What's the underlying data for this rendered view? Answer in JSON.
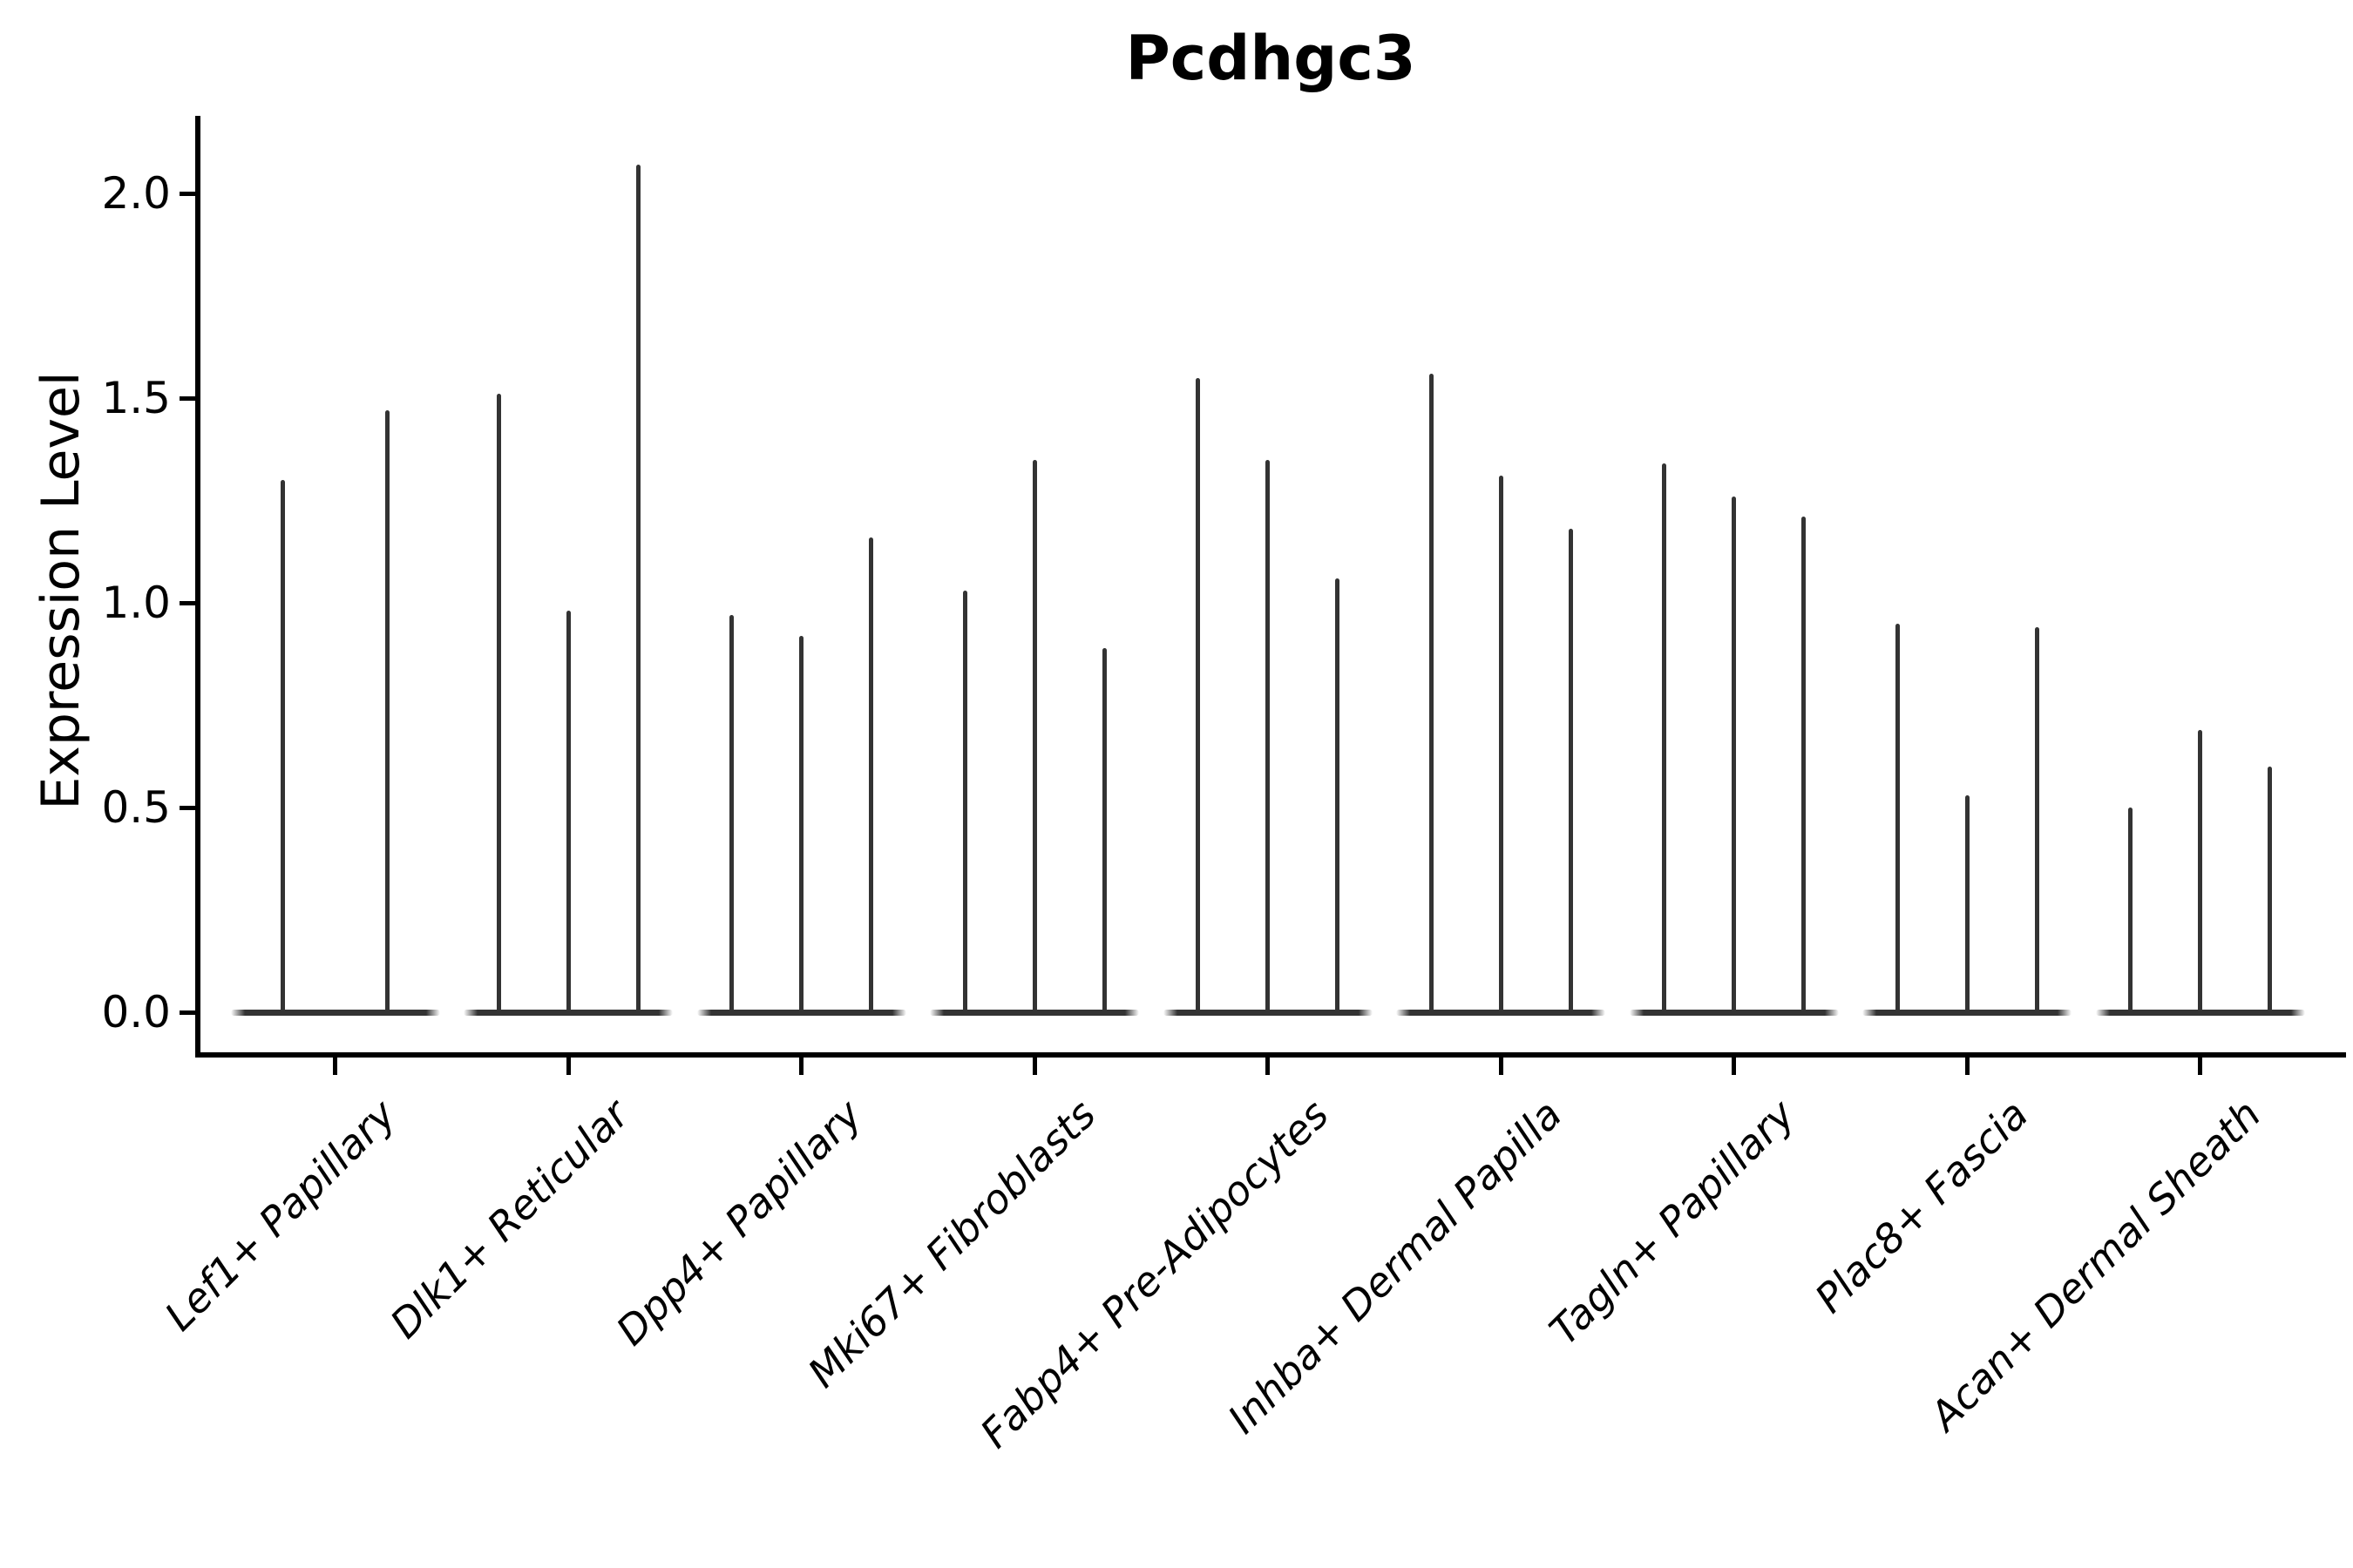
{
  "figure": {
    "background": "#ffffff",
    "text_color": "#000000",
    "axis_color": "#000000"
  },
  "chart_data": {
    "type": "violin",
    "title": "Pcdhgc3",
    "xlabel": "",
    "ylabel": "Expression Level",
    "grid": false,
    "legend": false,
    "violin_color": "#333333",
    "ylim": [
      -0.1,
      2.19
    ],
    "ytick_values": [
      2.0,
      1.5,
      1.0,
      0.5,
      0.0
    ],
    "ytick_labels": [
      "2.0",
      "1.5",
      "1.0",
      "0.5",
      "0.0"
    ],
    "categories": [
      "Lef1+ Papillary",
      "Dlk1+ Reticular",
      "Dpp4+ Papillary",
      "Mki67+ Fibroblasts",
      "Fabp4+ Pre-Adipocytes",
      "Inhba+ Dermal Papilla",
      "Tagln+ Papillary",
      "Plac8+ Fascia",
      "Acan+ Dermal Sheath"
    ],
    "series": [
      {
        "category": "Lef1+ Papillary",
        "violin_max_values": [
          1.3,
          1.47
        ]
      },
      {
        "category": "Dlk1+ Reticular",
        "violin_max_values": [
          1.51,
          0.98,
          2.07
        ]
      },
      {
        "category": "Dpp4+ Papillary",
        "violin_max_values": [
          0.97,
          0.92,
          1.16
        ]
      },
      {
        "category": "Mki67+ Fibroblasts",
        "violin_max_values": [
          1.03,
          1.35,
          0.89
        ]
      },
      {
        "category": "Fabp4+ Pre-Adipocytes",
        "violin_max_values": [
          1.55,
          1.35,
          1.06
        ]
      },
      {
        "category": "Inhba+ Dermal Papilla",
        "violin_max_values": [
          1.56,
          1.31,
          1.18
        ]
      },
      {
        "category": "Tagln+ Papillary",
        "violin_max_values": [
          1.34,
          1.26,
          1.21
        ]
      },
      {
        "category": "Plac8+ Fascia",
        "violin_max_values": [
          0.95,
          0.53,
          0.94
        ]
      },
      {
        "category": "Acan+ Dermal Sheath",
        "violin_max_values": [
          0.5,
          0.69,
          0.6
        ]
      }
    ],
    "baseline_value": 0.0
  }
}
